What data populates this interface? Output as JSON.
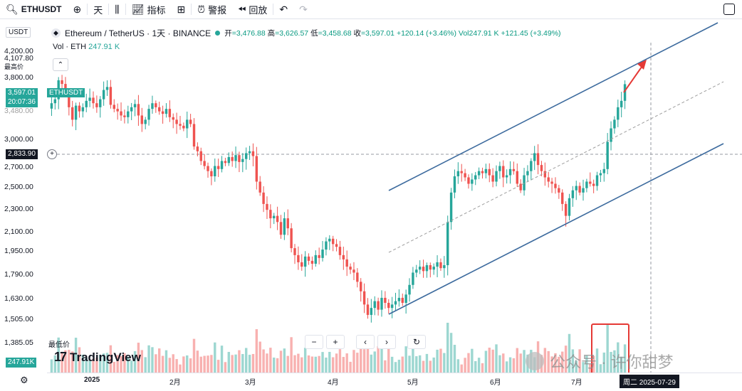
{
  "toolbar": {
    "symbol": "ETHUSDT",
    "interval": "天",
    "indicators": "指标",
    "alert": "警报",
    "replay": "回放"
  },
  "legend": {
    "title": "Ethereum / TetherUS · 1天 · BINANCE",
    "open_label": "开",
    "open": "=3,476.88",
    "high_label": "高",
    "high": "=3,626.57",
    "low_label": "低",
    "low": "=3,458.68",
    "close_label": "收",
    "close": "=3,597.01",
    "change": "+120.14 (+3.46%)",
    "vol": "Vol247.91 K",
    "vol_change": "+121.45 (+3.49%)",
    "vol_line_label": "Vol · ETH",
    "vol_line_value": "247.91 K"
  },
  "axis": {
    "currency": "USDT",
    "y_ticks": [
      "4,200.00",
      "3,800.00",
      "3,000.00",
      "2,700.00",
      "2,500.00",
      "2,300.00",
      "2,100.00",
      "1,950.00",
      "1,790.00",
      "1,630.00",
      "1,505.00"
    ],
    "y_partial": [
      "4,107.80",
      "最高价",
      "3,480.00"
    ],
    "x_ticks": [
      "2025",
      "2月",
      "3月",
      "4月",
      "5月",
      "6月",
      "7月"
    ],
    "current_price": "3,597.01",
    "countdown": "20:07:36",
    "crosshair_price": "2,833.90",
    "low_price": "1,385.05",
    "low_label": "最低价",
    "volume_tag": "247.91K",
    "symbol_tag": "ETHUSDT",
    "cursor_date": "周二 2025-07-29"
  },
  "branding": {
    "logo": "TradingView"
  },
  "watermark": {
    "text": "公众号 · 许你甜梦"
  },
  "colors": {
    "up": "#26a69a",
    "down": "#ef5350",
    "channel": "#3d6b9e",
    "highlight": "#e53935"
  },
  "chart_data": {
    "type": "candlestick",
    "symbol": "ETHUSDT",
    "ylim": [
      1385,
      4200
    ],
    "closes": [
      3350,
      3400,
      3650,
      3600,
      3480,
      3300,
      3150,
      3320,
      3250,
      3300,
      3380,
      3420,
      3350,
      3300,
      3400,
      3520,
      3560,
      3330,
      3280,
      3250,
      3200,
      3180,
      3250,
      3300,
      3340,
      3200,
      3100,
      3150,
      3280,
      3350,
      3300,
      3250,
      3220,
      3280,
      3180,
      3150,
      3100,
      3080,
      3050,
      3150,
      3100,
      2850,
      2800,
      2700,
      2650,
      2600,
      2550,
      2650,
      2620,
      2700,
      2680,
      2740,
      2700,
      2760,
      2690,
      2720,
      2780,
      2800,
      2750,
      2500,
      2400,
      2300,
      2250,
      2180,
      2200,
      2150,
      2050,
      2180,
      2100,
      1950,
      1900,
      1850,
      1820,
      1890,
      1860,
      1840,
      1900,
      1880,
      1940,
      2000,
      2020,
      1980,
      1960,
      1900,
      1870,
      1820,
      1800,
      1780,
      1720,
      1660,
      1580,
      1520,
      1560,
      1600,
      1550,
      1620,
      1590,
      1560,
      1580,
      1600,
      1620,
      1590,
      1640,
      1700,
      1780,
      1800,
      1820,
      1790,
      1830,
      1800,
      1820,
      1850,
      1810,
      1830,
      2150,
      2400,
      2550,
      2600,
      2580,
      2540,
      2480,
      2520,
      2560,
      2600,
      2580,
      2620,
      2560,
      2500,
      2600,
      2650,
      2540,
      2560,
      2620,
      2600,
      2480,
      2420,
      2560,
      2600,
      2700,
      2780,
      2660,
      2600,
      2540,
      2500,
      2480,
      2440,
      2400,
      2300,
      2200,
      2350,
      2420,
      2460,
      2400,
      2440,
      2500,
      2480,
      2460,
      2560,
      2580,
      2620,
      2900,
      3050,
      3150,
      3300,
      3380,
      3597
    ],
    "channel": {
      "upper": {
        "from": [
          "2025-04-22",
          2500
        ],
        "to": [
          "2025-08-20",
          4200
        ]
      },
      "lower": {
        "from": [
          "2025-04-22",
          1540
        ],
        "to": [
          "2025-08-20",
          2990
        ]
      }
    }
  }
}
